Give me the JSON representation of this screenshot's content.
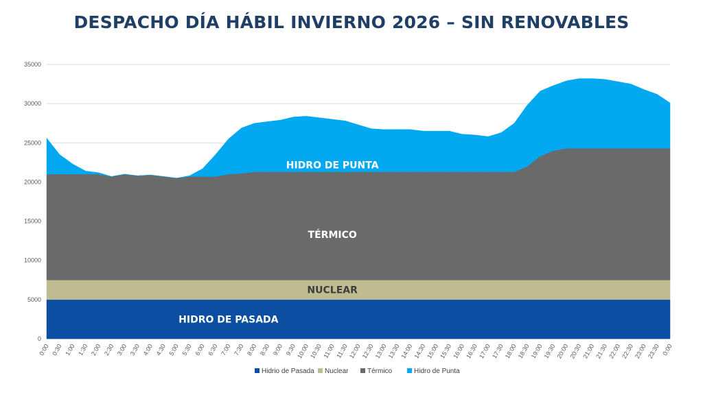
{
  "chart_data": {
    "type": "area",
    "stacked": true,
    "title": "DESPACHO DÍA HÁBIL INVIERNO 2026 – SIN RENOVABLES",
    "xlabel": "",
    "ylabel": "",
    "ylim": [
      0,
      35000
    ],
    "yticks": [
      "0",
      "5000",
      "10000",
      "15000",
      "20000",
      "25000",
      "30000",
      "35000"
    ],
    "grid": true,
    "legend_position": "bottom",
    "x": [
      "0:00",
      "0:30",
      "1:00",
      "1:30",
      "2:00",
      "2:30",
      "3:00",
      "3:30",
      "4:00",
      "4:30",
      "5:00",
      "5:30",
      "6:00",
      "6:30",
      "7:00",
      "7:30",
      "8:00",
      "8:30",
      "9:00",
      "9:30",
      "10:00",
      "10:30",
      "11:00",
      "11:30",
      "12:00",
      "12:30",
      "13:00",
      "13:30",
      "14:00",
      "14:30",
      "15:00",
      "15:30",
      "16:00",
      "16:30",
      "17:00",
      "17:30",
      "18:00",
      "18:30",
      "19:00",
      "19:30",
      "20:00",
      "20:30",
      "21:00",
      "21:30",
      "22:00",
      "22:30",
      "23:00",
      "23:30",
      "0:00"
    ],
    "series": [
      {
        "name": "Hidrio de Pasada",
        "color": "#0b4ea2",
        "label": "HIDRO DE PASADA",
        "values": [
          5000,
          5000,
          5000,
          5000,
          5000,
          5000,
          5000,
          5000,
          5000,
          5000,
          5000,
          5000,
          5000,
          5000,
          5000,
          5000,
          5000,
          5000,
          5000,
          5000,
          5000,
          5000,
          5000,
          5000,
          5000,
          5000,
          5000,
          5000,
          5000,
          5000,
          5000,
          5000,
          5000,
          5000,
          5000,
          5000,
          5000,
          5000,
          5000,
          5000,
          5000,
          5000,
          5000,
          5000,
          5000,
          5000,
          5000,
          5000,
          5000
        ]
      },
      {
        "name": "Nuclear",
        "color": "#bfbc92",
        "label": "NUCLEAR",
        "values": [
          2500,
          2500,
          2500,
          2500,
          2500,
          2500,
          2500,
          2500,
          2500,
          2500,
          2500,
          2500,
          2500,
          2500,
          2500,
          2500,
          2500,
          2500,
          2500,
          2500,
          2500,
          2500,
          2500,
          2500,
          2500,
          2500,
          2500,
          2500,
          2500,
          2500,
          2500,
          2500,
          2500,
          2500,
          2500,
          2500,
          2500,
          2500,
          2500,
          2500,
          2500,
          2500,
          2500,
          2500,
          2500,
          2500,
          2500,
          2500,
          2500
        ]
      },
      {
        "name": "Térmico",
        "color": "#6a6a6a",
        "label": "TÉRMICO",
        "values": [
          13500,
          13500,
          13500,
          13500,
          13500,
          13200,
          13500,
          13300,
          13400,
          13200,
          13000,
          13200,
          13200,
          13200,
          13500,
          13600,
          13800,
          13800,
          13800,
          13800,
          13800,
          13800,
          13800,
          13800,
          13800,
          13800,
          13800,
          13800,
          13800,
          13800,
          13800,
          13800,
          13800,
          13800,
          13800,
          13800,
          13800,
          14500,
          15800,
          16500,
          16800,
          16800,
          16800,
          16800,
          16800,
          16800,
          16800,
          16800,
          16800
        ]
      },
      {
        "name": "Hidro de Punta",
        "color": "#03a9f0",
        "label": "HIDRO DE PUNTA",
        "values": [
          4600,
          2500,
          1300,
          400,
          200,
          0,
          0,
          0,
          0,
          0,
          0,
          100,
          1000,
          2800,
          4500,
          5800,
          6200,
          6400,
          6600,
          7000,
          7100,
          6900,
          6700,
          6500,
          6000,
          5500,
          5400,
          5400,
          5400,
          5200,
          5200,
          5200,
          4800,
          4700,
          4500,
          5000,
          6200,
          7800,
          8300,
          8300,
          8600,
          8900,
          8900,
          8800,
          8500,
          8200,
          7500,
          6900,
          5800
        ]
      }
    ]
  }
}
